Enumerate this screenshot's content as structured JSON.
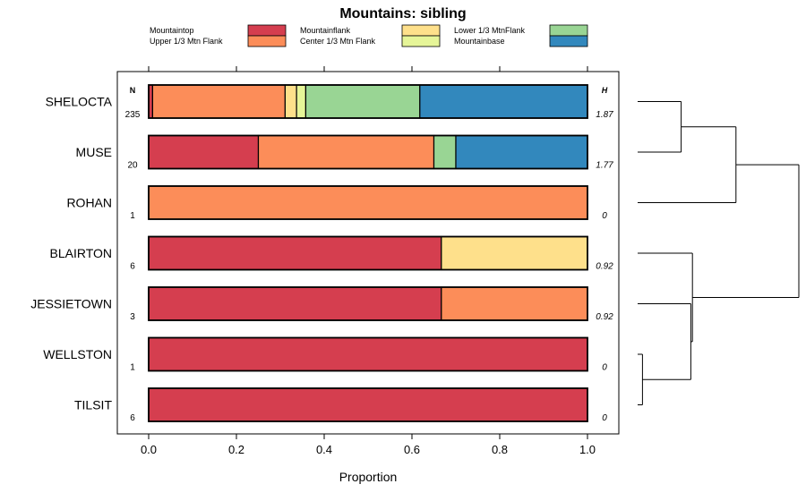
{
  "chart_data": {
    "type": "bar",
    "stacked": true,
    "orientation": "horizontal",
    "title": "Mountains: sibling",
    "xlabel": "Proportion",
    "ylabel": "",
    "xlim": [
      -0.07,
      1.07
    ],
    "x_ticks": [
      0.0,
      0.2,
      0.4,
      0.6,
      0.8,
      1.0
    ],
    "x_tick_labels": [
      "0.0",
      "0.2",
      "0.4",
      "0.6",
      "0.8",
      "1.0"
    ],
    "n_header": "N",
    "h_header": "H",
    "categories": [
      "SHELOCTA",
      "MUSE",
      "ROHAN",
      "BLAIRTON",
      "JESSIETOWN",
      "WELLSTON",
      "TILSIT"
    ],
    "n_values": [
      "235",
      "20",
      "1",
      "6",
      "3",
      "1",
      "6"
    ],
    "h_values": [
      "1.87",
      "1.77",
      "0",
      "0.92",
      "0.92",
      "0",
      "0"
    ],
    "legend": [
      {
        "name": "Mountaintop",
        "color": "#d53e4f"
      },
      {
        "name": "Upper 1/3 Mtn Flank",
        "color": "#fc8d59"
      },
      {
        "name": "Mountainflank",
        "color": "#fee08b"
      },
      {
        "name": "Center 1/3 Mtn Flank",
        "color": "#e6f598"
      },
      {
        "name": "Lower 1/3 MtnFlank",
        "color": "#99d594"
      },
      {
        "name": "Mountainbase",
        "color": "#3288bd"
      }
    ],
    "series": [
      {
        "name": "Mountaintop",
        "values": [
          0.009,
          0.25,
          0.0,
          0.667,
          0.667,
          1.0,
          1.0
        ]
      },
      {
        "name": "Upper 1/3 Mtn Flank",
        "values": [
          0.302,
          0.4,
          1.0,
          0.0,
          0.333,
          0.0,
          0.0
        ]
      },
      {
        "name": "Mountainflank",
        "values": [
          0.026,
          0.0,
          0.0,
          0.333,
          0.0,
          0.0,
          0.0
        ]
      },
      {
        "name": "Center 1/3 Mtn Flank",
        "values": [
          0.021,
          0.0,
          0.0,
          0.0,
          0.0,
          0.0,
          0.0
        ]
      },
      {
        "name": "Lower 1/3 MtnFlank",
        "values": [
          0.26,
          0.05,
          0.0,
          0.0,
          0.0,
          0.0,
          0.0
        ]
      },
      {
        "name": "Mountainbase",
        "values": [
          0.382,
          0.3,
          0.0,
          0.0,
          0.0,
          0.0,
          0.0
        ]
      }
    ],
    "dendrogram": {
      "leaves": [
        "SHELOCTA",
        "MUSE",
        "ROHAN",
        "BLAIRTON",
        "JESSIETOWN",
        "WELLSTON",
        "TILSIT"
      ],
      "merges": [
        {
          "a": "WELLSTON",
          "b": "TILSIT",
          "height": 0.03
        },
        {
          "a": "SHELOCTA",
          "b": "MUSE",
          "height": 0.27
        },
        {
          "a": "JESSIETOWN",
          "b": "(WELLSTON,TILSIT)",
          "height": 0.33
        },
        {
          "a": "BLAIRTON",
          "b": "(JESSIETOWN,(WELLSTON,TILSIT))",
          "height": 0.34
        },
        {
          "a": "(SHELOCTA,MUSE)",
          "b": "ROHAN",
          "height": 0.61
        },
        {
          "a": "(SHELOCTA,MUSE,ROHAN)",
          "b": "(BLAIRTON,JESSIETOWN,WELLSTON,TILSIT)",
          "height": 1.0
        }
      ]
    }
  }
}
